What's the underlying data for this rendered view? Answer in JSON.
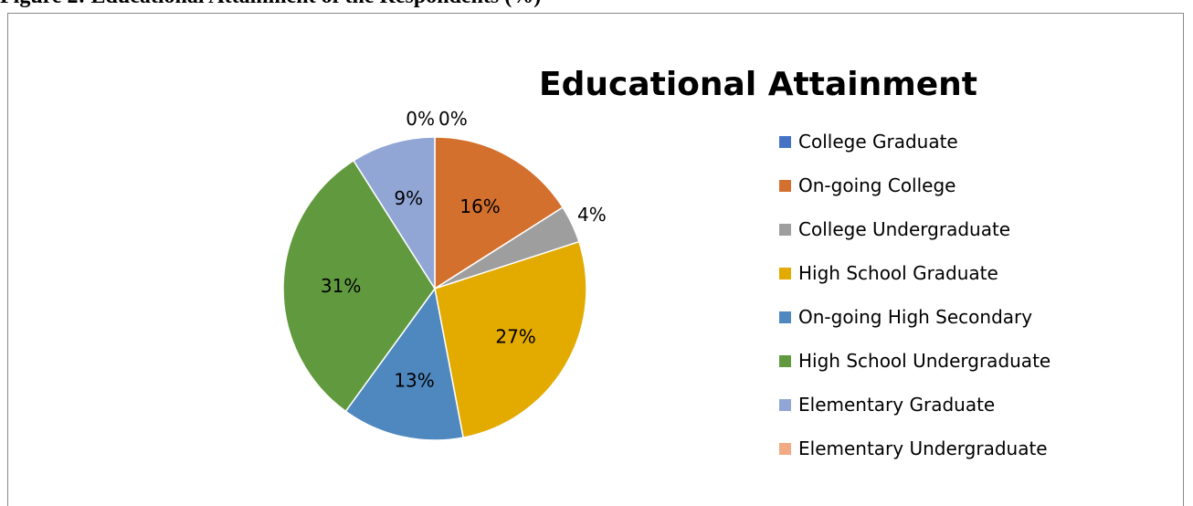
{
  "caption": "Figure 2: Educational Attainment of the Respondents (%)",
  "chart_data": {
    "type": "pie",
    "title": "Educational Attainment",
    "legend_position": "right",
    "categories": [
      "College Graduate",
      "On-going College",
      "College Undergraduate",
      "High School Graduate",
      "On-going High Secondary",
      "High School Undergraduate",
      "Elementary Graduate",
      "Elementary Undergraduate"
    ],
    "values": [
      0,
      16,
      4,
      27,
      13,
      31,
      9,
      0
    ],
    "value_labels": [
      "0%",
      "16%",
      "4%",
      "27%",
      "13%",
      "31%",
      "9%",
      "0%"
    ],
    "colors": [
      "#4472c4",
      "#d4702d",
      "#9e9e9e",
      "#e3aa00",
      "#4e88bf",
      "#619a3e",
      "#92a6d6",
      "#f2aa84"
    ]
  }
}
